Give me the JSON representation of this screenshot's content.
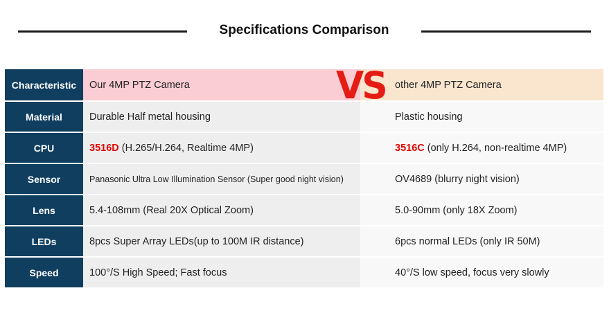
{
  "header": {
    "title": "Specifications Comparison"
  },
  "table": {
    "vs_label": "VS",
    "head": {
      "label": "Characteristic",
      "ours": "Our 4MP  PTZ  Camera",
      "other": "other 4MP PTZ Camera"
    },
    "rows": [
      {
        "label": "Material",
        "ours": "Durable Half metal housing",
        "other": "Plastic housing"
      },
      {
        "label": "CPU",
        "ours_hl": "3516D",
        "ours": "(H.265/H.264, Realtime 4MP)",
        "other_hl": "3516C",
        "other": "(only H.264, non-realtime 4MP)"
      },
      {
        "label": "Sensor",
        "ours": "Panasonic Ultra Low Illumination Sensor (Super good night vision)",
        "other": "OV4689  (blurry night vision)"
      },
      {
        "label": "Lens",
        "ours": "5.4-108mm (Real 20X Optical Zoom)",
        "other": "5.0-90mm (only 18X Zoom)"
      },
      {
        "label": "LEDs",
        "ours": "8pcs Super Array LEDs(up to 100M IR distance)",
        "other": "6pcs normal LEDs (only IR 50M)"
      },
      {
        "label": "Speed",
        "ours": "100°/S High Speed; Fast focus",
        "other": "40°/S low speed, focus very slowly"
      }
    ],
    "colors": {
      "label_bg": "#0f3e5f",
      "highlight": "#e10600",
      "vs": "#e51c13"
    }
  }
}
